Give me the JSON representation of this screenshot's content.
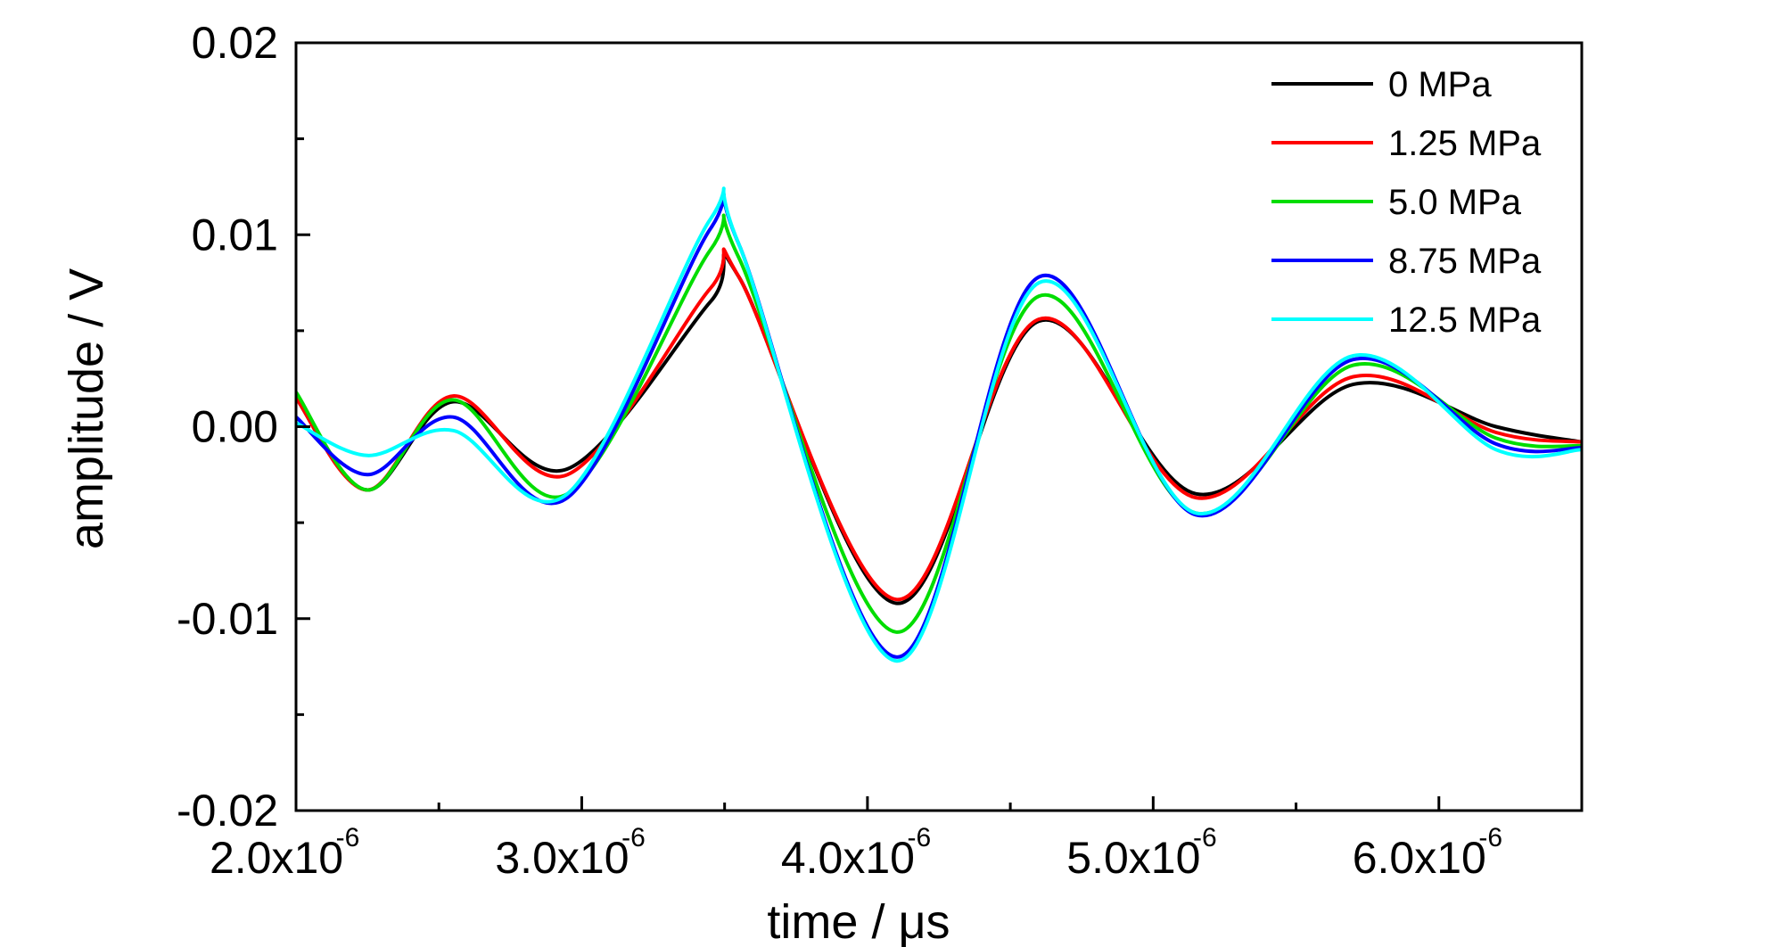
{
  "chart_data": {
    "type": "line",
    "title": "",
    "xlabel": "time / μs",
    "ylabel": "amplitude / V",
    "xlim": [
      2e-06,
      6.5e-06
    ],
    "ylim": [
      -0.02,
      0.02
    ],
    "x_ticks": [
      {
        "value": 2e-06,
        "mantissa": "2.0x10",
        "exponent": "-6"
      },
      {
        "value": 3e-06,
        "mantissa": "3.0x10",
        "exponent": "-6"
      },
      {
        "value": 4e-06,
        "mantissa": "4.0x10",
        "exponent": "-6"
      },
      {
        "value": 5e-06,
        "mantissa": "5.0x10",
        "exponent": "-6"
      },
      {
        "value": 6e-06,
        "mantissa": "6.0x10",
        "exponent": "-6"
      }
    ],
    "y_ticks": [
      {
        "value": 0.02,
        "label": "0.02"
      },
      {
        "value": 0.01,
        "label": "0.01"
      },
      {
        "value": 0.0,
        "label": "0.00"
      },
      {
        "value": -0.01,
        "label": "-0.01"
      },
      {
        "value": -0.02,
        "label": "-0.02"
      }
    ],
    "grid": false,
    "legend_position": "top-right",
    "x": [
      2e-06,
      2.25e-06,
      2.55e-06,
      2.95e-06,
      3.45e-06,
      3.55e-06,
      4.1e-06,
      4.6e-06,
      5.15e-06,
      5.7e-06,
      6.2e-06,
      6.5e-06
    ],
    "series": [
      {
        "name": "0 MPa",
        "color": "#000000",
        "values": [
          0.0015,
          -0.0033,
          0.0013,
          -0.0022,
          0.0065,
          0.0078,
          -0.0092,
          0.0055,
          -0.0035,
          0.0022,
          0.0,
          -0.0008
        ]
      },
      {
        "name": "1.25 MPa",
        "color": "#ff0000",
        "values": [
          0.0015,
          -0.0033,
          0.0016,
          -0.0025,
          0.0072,
          0.0078,
          -0.009,
          0.0056,
          -0.0037,
          0.0026,
          -0.0003,
          -0.0008
        ]
      },
      {
        "name": "5.0 MPa",
        "color": "#00dd00",
        "values": [
          0.0018,
          -0.0033,
          0.0014,
          -0.0035,
          0.0092,
          0.0088,
          -0.0107,
          0.0068,
          -0.0045,
          0.0032,
          -0.0006,
          -0.001
        ]
      },
      {
        "name": "8.75 MPa",
        "color": "#0000ff",
        "values": [
          0.0005,
          -0.0025,
          0.0005,
          -0.0037,
          0.0103,
          0.0095,
          -0.012,
          0.0078,
          -0.0046,
          0.0035,
          -0.0009,
          -0.0011
        ]
      },
      {
        "name": "12.5 MPa",
        "color": "#00ffff",
        "values": [
          0.0002,
          -0.0015,
          -0.0002,
          -0.0035,
          0.0108,
          0.0095,
          -0.0122,
          0.0075,
          -0.0045,
          0.0037,
          -0.0012,
          -0.0012
        ]
      }
    ]
  }
}
